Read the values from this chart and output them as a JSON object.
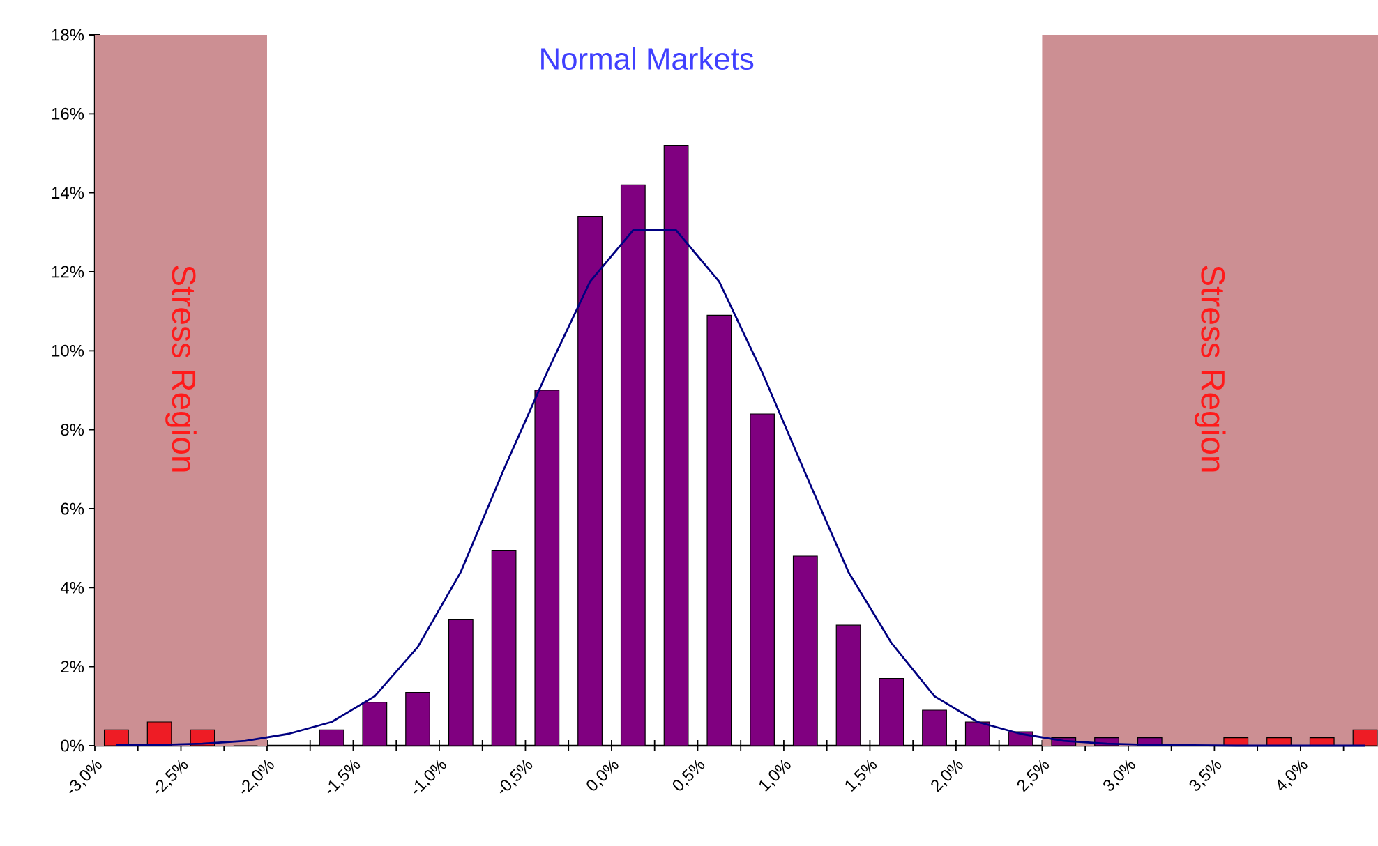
{
  "chart_data": {
    "type": "bar",
    "title": "Normal Markets",
    "x": [
      -2.875,
      -2.625,
      -2.375,
      -2.125,
      -1.875,
      -1.625,
      -1.375,
      -1.125,
      -0.875,
      -0.625,
      -0.375,
      -0.125,
      0.125,
      0.375,
      0.625,
      0.875,
      1.125,
      1.375,
      1.625,
      1.875,
      2.125,
      2.375,
      2.625,
      2.875,
      3.125,
      3.375,
      3.625,
      3.875,
      4.125,
      4.375
    ],
    "series": [
      {
        "colors": [
          "#ee1c25",
          "#ee1c25",
          "#ee1c25",
          "#ee1c25",
          "#800080",
          "#800080",
          "#800080",
          "#800080",
          "#800080",
          "#800080",
          "#800080",
          "#800080",
          "#800080",
          "#800080",
          "#800080",
          "#800080",
          "#800080",
          "#800080",
          "#800080",
          "#800080",
          "#800080",
          "#800080",
          "#800080",
          "#800080",
          "#800080",
          "#800080",
          "#ee1c25",
          "#ee1c25",
          "#ee1c25",
          "#ee1c25"
        ],
        "values": [
          0.4,
          0.6,
          0.4,
          0,
          0,
          0.4,
          1.1,
          1.35,
          3.2,
          4.95,
          9.0,
          13.4,
          14.2,
          15.2,
          10.9,
          8.4,
          4.8,
          3.05,
          1.7,
          0.9,
          0.6,
          0.35,
          0.2,
          0.2,
          0.2,
          0,
          0.2,
          0.2,
          0.2,
          0.4
        ]
      },
      {
        "type": "line",
        "color": "#000080",
        "values": [
          0.01,
          0.02,
          0.05,
          0.12,
          0.3,
          0.6,
          1.25,
          2.5,
          4.4,
          7.0,
          9.45,
          11.75,
          13.05,
          13.05,
          11.75,
          9.45,
          6.9,
          4.4,
          2.6,
          1.25,
          0.6,
          0.3,
          0.12,
          0.05,
          0.02,
          0.01,
          0,
          0,
          0,
          0
        ]
      }
    ],
    "xlim": [
      -3,
      4.45
    ],
    "ylim": [
      0,
      18
    ],
    "xticks": [
      {
        "value": -3,
        "label": "-3,0%"
      },
      {
        "value": -2.75,
        "label": null
      },
      {
        "value": -2.5,
        "label": "-2,5%"
      },
      {
        "value": -2.25,
        "label": null
      },
      {
        "value": -2,
        "label": "-2,0%"
      },
      {
        "value": -1.75,
        "label": null
      },
      {
        "value": -1.5,
        "label": "-1,5%"
      },
      {
        "value": -1.25,
        "label": null
      },
      {
        "value": -1,
        "label": "-1,0%"
      },
      {
        "value": -0.75,
        "label": null
      },
      {
        "value": -0.5,
        "label": "-0,5%"
      },
      {
        "value": -0.25,
        "label": null
      },
      {
        "value": 0,
        "label": "0,0%"
      },
      {
        "value": 0.25,
        "label": null
      },
      {
        "value": 0.5,
        "label": "0,5%"
      },
      {
        "value": 0.75,
        "label": null
      },
      {
        "value": 1,
        "label": "1,0%"
      },
      {
        "value": 1.25,
        "label": null
      },
      {
        "value": 1.5,
        "label": "1,5%"
      },
      {
        "value": 1.75,
        "label": null
      },
      {
        "value": 2,
        "label": "2,0%"
      },
      {
        "value": 2.25,
        "label": null
      },
      {
        "value": 2.5,
        "label": "2,5%"
      },
      {
        "value": 2.75,
        "label": null
      },
      {
        "value": 3,
        "label": "3,0%"
      },
      {
        "value": 3.25,
        "label": null
      },
      {
        "value": 3.5,
        "label": "3,5%"
      },
      {
        "value": 3.75,
        "label": null
      },
      {
        "value": 4,
        "label": "4,0%"
      },
      {
        "value": 4.25,
        "label": null
      }
    ],
    "yticks": [
      {
        "value": 0,
        "label": "0%"
      },
      {
        "value": 2,
        "label": "2%"
      },
      {
        "value": 4,
        "label": "4%"
      },
      {
        "value": 6,
        "label": "6%"
      },
      {
        "value": 8,
        "label": "8%"
      },
      {
        "value": 10,
        "label": "10%"
      },
      {
        "value": 12,
        "label": "12%"
      },
      {
        "value": 14,
        "label": "14%"
      },
      {
        "value": 16,
        "label": "16%"
      },
      {
        "value": 18,
        "label": "18%"
      }
    ],
    "bands": [
      {
        "axis": "x",
        "from": -3,
        "to": -2,
        "label": "Stress Region",
        "color": "#cc8f93"
      },
      {
        "axis": "x",
        "from": 2.5,
        "to": 4.45,
        "label": "Stress Region",
        "color": "#cc8f93"
      }
    ],
    "marker": "none",
    "grid": false
  }
}
